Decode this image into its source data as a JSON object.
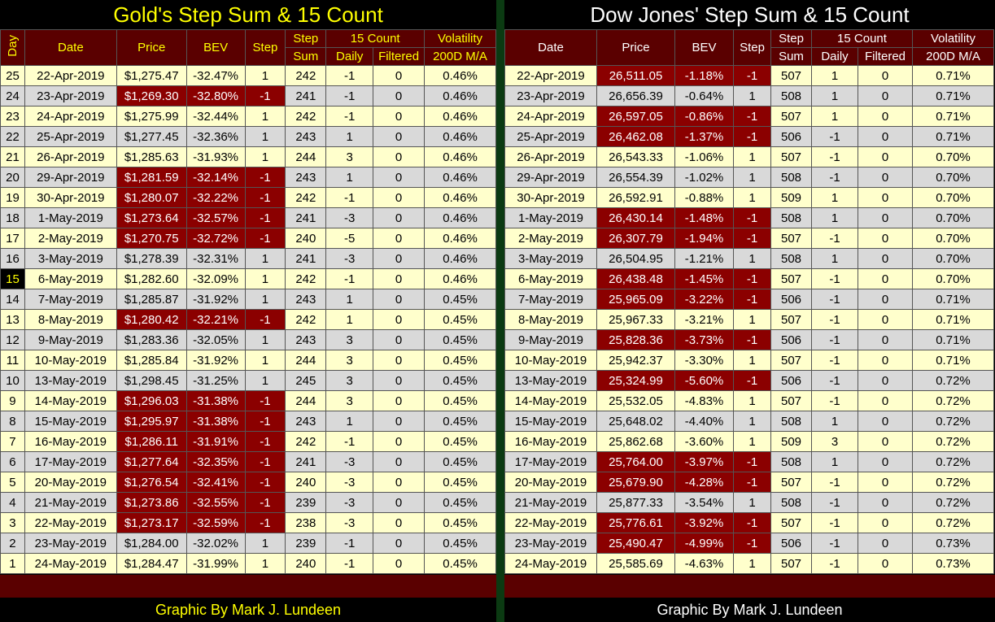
{
  "colors": {
    "header_bg": "#5a0000",
    "negative_bg": "#8b0000",
    "row_odd": "#ffffcc",
    "row_even": "#d9d9d9",
    "gold_text": "#ffff00",
    "divider": "#0b3a12"
  },
  "gold": {
    "title": "Gold's Step Sum & 15 Count",
    "footer": "Graphic By Mark J. Lundeen",
    "headers": {
      "day": "Day",
      "date": "Date",
      "price": "Price",
      "bev": "BEV",
      "step": "Step",
      "step_sum_1": "Step",
      "step_sum_2": "Sum",
      "count15": "15 Count",
      "daily": "Daily",
      "filtered": "Filtered",
      "vol_1": "Volatility",
      "vol_2": "200D M/A"
    },
    "rows": [
      {
        "day": "25",
        "date": "22-Apr-2019",
        "price": "$1,275.47",
        "bev": "-32.47%",
        "step": "1",
        "sum": "242",
        "daily": "-1",
        "filtered": "0",
        "vol": "0.46%"
      },
      {
        "day": "24",
        "date": "23-Apr-2019",
        "price": "$1,269.30",
        "bev": "-32.80%",
        "step": "-1",
        "sum": "241",
        "daily": "-1",
        "filtered": "0",
        "vol": "0.46%"
      },
      {
        "day": "23",
        "date": "24-Apr-2019",
        "price": "$1,275.99",
        "bev": "-32.44%",
        "step": "1",
        "sum": "242",
        "daily": "-1",
        "filtered": "0",
        "vol": "0.46%"
      },
      {
        "day": "22",
        "date": "25-Apr-2019",
        "price": "$1,277.45",
        "bev": "-32.36%",
        "step": "1",
        "sum": "243",
        "daily": "1",
        "filtered": "0",
        "vol": "0.46%"
      },
      {
        "day": "21",
        "date": "26-Apr-2019",
        "price": "$1,285.63",
        "bev": "-31.93%",
        "step": "1",
        "sum": "244",
        "daily": "3",
        "filtered": "0",
        "vol": "0.46%"
      },
      {
        "day": "20",
        "date": "29-Apr-2019",
        "price": "$1,281.59",
        "bev": "-32.14%",
        "step": "-1",
        "sum": "243",
        "daily": "1",
        "filtered": "0",
        "vol": "0.46%"
      },
      {
        "day": "19",
        "date": "30-Apr-2019",
        "price": "$1,280.07",
        "bev": "-32.22%",
        "step": "-1",
        "sum": "242",
        "daily": "-1",
        "filtered": "0",
        "vol": "0.46%"
      },
      {
        "day": "18",
        "date": "1-May-2019",
        "price": "$1,273.64",
        "bev": "-32.57%",
        "step": "-1",
        "sum": "241",
        "daily": "-3",
        "filtered": "0",
        "vol": "0.46%"
      },
      {
        "day": "17",
        "date": "2-May-2019",
        "price": "$1,270.75",
        "bev": "-32.72%",
        "step": "-1",
        "sum": "240",
        "daily": "-5",
        "filtered": "0",
        "vol": "0.46%"
      },
      {
        "day": "16",
        "date": "3-May-2019",
        "price": "$1,278.39",
        "bev": "-32.31%",
        "step": "1",
        "sum": "241",
        "daily": "-3",
        "filtered": "0",
        "vol": "0.46%"
      },
      {
        "day": "15",
        "date": "6-May-2019",
        "price": "$1,282.60",
        "bev": "-32.09%",
        "step": "1",
        "sum": "242",
        "daily": "-1",
        "filtered": "0",
        "vol": "0.46%"
      },
      {
        "day": "14",
        "date": "7-May-2019",
        "price": "$1,285.87",
        "bev": "-31.92%",
        "step": "1",
        "sum": "243",
        "daily": "1",
        "filtered": "0",
        "vol": "0.45%"
      },
      {
        "day": "13",
        "date": "8-May-2019",
        "price": "$1,280.42",
        "bev": "-32.21%",
        "step": "-1",
        "sum": "242",
        "daily": "1",
        "filtered": "0",
        "vol": "0.45%"
      },
      {
        "day": "12",
        "date": "9-May-2019",
        "price": "$1,283.36",
        "bev": "-32.05%",
        "step": "1",
        "sum": "243",
        "daily": "3",
        "filtered": "0",
        "vol": "0.45%"
      },
      {
        "day": "11",
        "date": "10-May-2019",
        "price": "$1,285.84",
        "bev": "-31.92%",
        "step": "1",
        "sum": "244",
        "daily": "3",
        "filtered": "0",
        "vol": "0.45%"
      },
      {
        "day": "10",
        "date": "13-May-2019",
        "price": "$1,298.45",
        "bev": "-31.25%",
        "step": "1",
        "sum": "245",
        "daily": "3",
        "filtered": "0",
        "vol": "0.45%"
      },
      {
        "day": "9",
        "date": "14-May-2019",
        "price": "$1,296.03",
        "bev": "-31.38%",
        "step": "-1",
        "sum": "244",
        "daily": "3",
        "filtered": "0",
        "vol": "0.45%"
      },
      {
        "day": "8",
        "date": "15-May-2019",
        "price": "$1,295.97",
        "bev": "-31.38%",
        "step": "-1",
        "sum": "243",
        "daily": "1",
        "filtered": "0",
        "vol": "0.45%"
      },
      {
        "day": "7",
        "date": "16-May-2019",
        "price": "$1,286.11",
        "bev": "-31.91%",
        "step": "-1",
        "sum": "242",
        "daily": "-1",
        "filtered": "0",
        "vol": "0.45%"
      },
      {
        "day": "6",
        "date": "17-May-2019",
        "price": "$1,277.64",
        "bev": "-32.35%",
        "step": "-1",
        "sum": "241",
        "daily": "-3",
        "filtered": "0",
        "vol": "0.45%"
      },
      {
        "day": "5",
        "date": "20-May-2019",
        "price": "$1,276.54",
        "bev": "-32.41%",
        "step": "-1",
        "sum": "240",
        "daily": "-3",
        "filtered": "0",
        "vol": "0.45%"
      },
      {
        "day": "4",
        "date": "21-May-2019",
        "price": "$1,273.86",
        "bev": "-32.55%",
        "step": "-1",
        "sum": "239",
        "daily": "-3",
        "filtered": "0",
        "vol": "0.45%"
      },
      {
        "day": "3",
        "date": "22-May-2019",
        "price": "$1,273.17",
        "bev": "-32.59%",
        "step": "-1",
        "sum": "238",
        "daily": "-3",
        "filtered": "0",
        "vol": "0.45%"
      },
      {
        "day": "2",
        "date": "23-May-2019",
        "price": "$1,284.00",
        "bev": "-32.02%",
        "step": "1",
        "sum": "239",
        "daily": "-1",
        "filtered": "0",
        "vol": "0.45%"
      },
      {
        "day": "1",
        "date": "24-May-2019",
        "price": "$1,284.47",
        "bev": "-31.99%",
        "step": "1",
        "sum": "240",
        "daily": "-1",
        "filtered": "0",
        "vol": "0.45%"
      }
    ]
  },
  "dow": {
    "title": "Dow Jones' Step Sum & 15 Count",
    "footer": "Graphic By Mark J. Lundeen",
    "headers": {
      "date": "Date",
      "price": "Price",
      "bev": "BEV",
      "step": "Step",
      "step_sum_1": "Step",
      "step_sum_2": "Sum",
      "count15": "15 Count",
      "daily": "Daily",
      "filtered": "Filtered",
      "vol_1": "Volatility",
      "vol_2": "200D M/A"
    },
    "rows": [
      {
        "date": "22-Apr-2019",
        "price": "26,511.05",
        "bev": "-1.18%",
        "step": "-1",
        "sum": "507",
        "daily": "1",
        "filtered": "0",
        "vol": "0.71%"
      },
      {
        "date": "23-Apr-2019",
        "price": "26,656.39",
        "bev": "-0.64%",
        "step": "1",
        "sum": "508",
        "daily": "1",
        "filtered": "0",
        "vol": "0.71%"
      },
      {
        "date": "24-Apr-2019",
        "price": "26,597.05",
        "bev": "-0.86%",
        "step": "-1",
        "sum": "507",
        "daily": "1",
        "filtered": "0",
        "vol": "0.71%"
      },
      {
        "date": "25-Apr-2019",
        "price": "26,462.08",
        "bev": "-1.37%",
        "step": "-1",
        "sum": "506",
        "daily": "-1",
        "filtered": "0",
        "vol": "0.71%"
      },
      {
        "date": "26-Apr-2019",
        "price": "26,543.33",
        "bev": "-1.06%",
        "step": "1",
        "sum": "507",
        "daily": "-1",
        "filtered": "0",
        "vol": "0.70%"
      },
      {
        "date": "29-Apr-2019",
        "price": "26,554.39",
        "bev": "-1.02%",
        "step": "1",
        "sum": "508",
        "daily": "-1",
        "filtered": "0",
        "vol": "0.70%"
      },
      {
        "date": "30-Apr-2019",
        "price": "26,592.91",
        "bev": "-0.88%",
        "step": "1",
        "sum": "509",
        "daily": "1",
        "filtered": "0",
        "vol": "0.70%"
      },
      {
        "date": "1-May-2019",
        "price": "26,430.14",
        "bev": "-1.48%",
        "step": "-1",
        "sum": "508",
        "daily": "1",
        "filtered": "0",
        "vol": "0.70%"
      },
      {
        "date": "2-May-2019",
        "price": "26,307.79",
        "bev": "-1.94%",
        "step": "-1",
        "sum": "507",
        "daily": "-1",
        "filtered": "0",
        "vol": "0.70%"
      },
      {
        "date": "3-May-2019",
        "price": "26,504.95",
        "bev": "-1.21%",
        "step": "1",
        "sum": "508",
        "daily": "1",
        "filtered": "0",
        "vol": "0.70%"
      },
      {
        "date": "6-May-2019",
        "price": "26,438.48",
        "bev": "-1.45%",
        "step": "-1",
        "sum": "507",
        "daily": "-1",
        "filtered": "0",
        "vol": "0.70%"
      },
      {
        "date": "7-May-2019",
        "price": "25,965.09",
        "bev": "-3.22%",
        "step": "-1",
        "sum": "506",
        "daily": "-1",
        "filtered": "0",
        "vol": "0.71%"
      },
      {
        "date": "8-May-2019",
        "price": "25,967.33",
        "bev": "-3.21%",
        "step": "1",
        "sum": "507",
        "daily": "-1",
        "filtered": "0",
        "vol": "0.71%"
      },
      {
        "date": "9-May-2019",
        "price": "25,828.36",
        "bev": "-3.73%",
        "step": "-1",
        "sum": "506",
        "daily": "-1",
        "filtered": "0",
        "vol": "0.71%"
      },
      {
        "date": "10-May-2019",
        "price": "25,942.37",
        "bev": "-3.30%",
        "step": "1",
        "sum": "507",
        "daily": "-1",
        "filtered": "0",
        "vol": "0.71%"
      },
      {
        "date": "13-May-2019",
        "price": "25,324.99",
        "bev": "-5.60%",
        "step": "-1",
        "sum": "506",
        "daily": "-1",
        "filtered": "0",
        "vol": "0.72%"
      },
      {
        "date": "14-May-2019",
        "price": "25,532.05",
        "bev": "-4.83%",
        "step": "1",
        "sum": "507",
        "daily": "-1",
        "filtered": "0",
        "vol": "0.72%"
      },
      {
        "date": "15-May-2019",
        "price": "25,648.02",
        "bev": "-4.40%",
        "step": "1",
        "sum": "508",
        "daily": "1",
        "filtered": "0",
        "vol": "0.72%"
      },
      {
        "date": "16-May-2019",
        "price": "25,862.68",
        "bev": "-3.60%",
        "step": "1",
        "sum": "509",
        "daily": "3",
        "filtered": "0",
        "vol": "0.72%"
      },
      {
        "date": "17-May-2019",
        "price": "25,764.00",
        "bev": "-3.97%",
        "step": "-1",
        "sum": "508",
        "daily": "1",
        "filtered": "0",
        "vol": "0.72%"
      },
      {
        "date": "20-May-2019",
        "price": "25,679.90",
        "bev": "-4.28%",
        "step": "-1",
        "sum": "507",
        "daily": "-1",
        "filtered": "0",
        "vol": "0.72%"
      },
      {
        "date": "21-May-2019",
        "price": "25,877.33",
        "bev": "-3.54%",
        "step": "1",
        "sum": "508",
        "daily": "-1",
        "filtered": "0",
        "vol": "0.72%"
      },
      {
        "date": "22-May-2019",
        "price": "25,776.61",
        "bev": "-3.92%",
        "step": "-1",
        "sum": "507",
        "daily": "-1",
        "filtered": "0",
        "vol": "0.72%"
      },
      {
        "date": "23-May-2019",
        "price": "25,490.47",
        "bev": "-4.99%",
        "step": "-1",
        "sum": "506",
        "daily": "-1",
        "filtered": "0",
        "vol": "0.73%"
      },
      {
        "date": "24-May-2019",
        "price": "25,585.69",
        "bev": "-4.63%",
        "step": "1",
        "sum": "507",
        "daily": "-1",
        "filtered": "0",
        "vol": "0.73%"
      }
    ]
  }
}
